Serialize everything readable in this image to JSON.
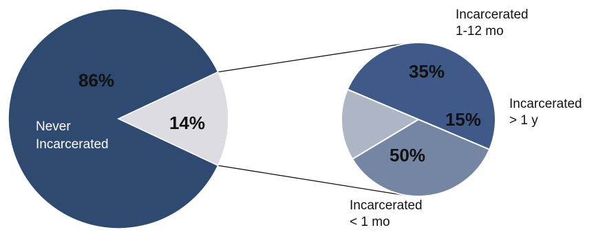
{
  "chart_data": [
    {
      "type": "pie",
      "categories": [
        "Never Incarcerated",
        ""
      ],
      "values": [
        86,
        14
      ],
      "value_labels": [
        "86%",
        "14%"
      ],
      "category_labels": [
        "Never\nIncarcerated",
        ""
      ],
      "colors": [
        "#2f4a70",
        "#dcdce2"
      ]
    },
    {
      "type": "pie",
      "categories": [
        "Incarcerated < 1 mo",
        "Incarcerated 1-12 mo",
        "Incarcerated > 1 y"
      ],
      "values": [
        50,
        35,
        15
      ],
      "value_labels": [
        "50%",
        "35%",
        "15%"
      ],
      "category_labels": [
        "Incarcerated\n< 1 mo",
        "Incarcerated\n1-12 mo",
        "Incarcerated\n> 1 y"
      ],
      "colors": [
        "#3f5a88",
        "#7586a4",
        "#aeb6c6"
      ]
    }
  ],
  "colors": {
    "connector": "#111111",
    "slice_edge": "#ffffff"
  }
}
